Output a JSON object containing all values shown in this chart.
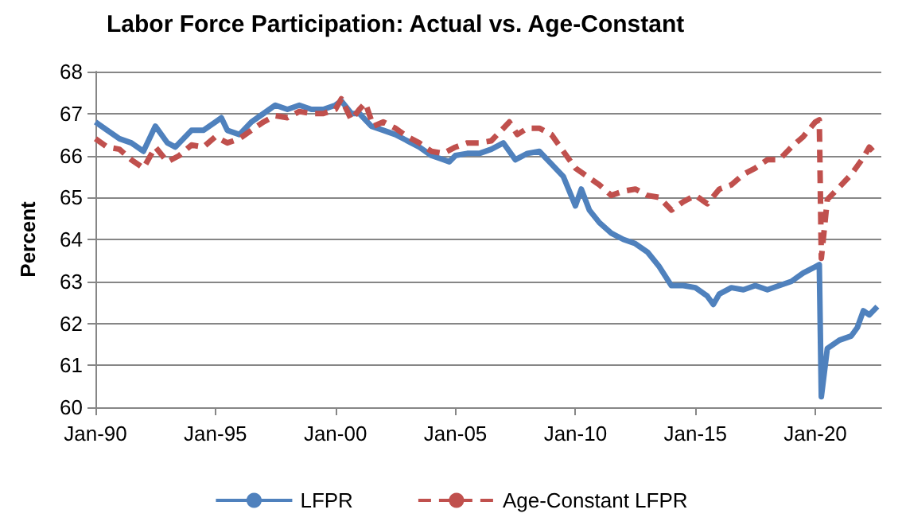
{
  "chart_data": {
    "type": "line",
    "title": "Labor Force Participation: Actual vs. Age-Constant",
    "ylabel": "Percent",
    "xlim": [
      "1990-01",
      "2022-10"
    ],
    "xticks": [
      {
        "value": "1990-01",
        "label": "Jan-90"
      },
      {
        "value": "1995-01",
        "label": "Jan-95"
      },
      {
        "value": "2000-01",
        "label": "Jan-00"
      },
      {
        "value": "2005-01",
        "label": "Jan-05"
      },
      {
        "value": "2010-01",
        "label": "Jan-10"
      },
      {
        "value": "2015-01",
        "label": "Jan-15"
      },
      {
        "value": "2020-01",
        "label": "Jan-20"
      }
    ],
    "ylim": [
      60,
      68
    ],
    "yticks": [
      60,
      61,
      62,
      63,
      64,
      65,
      66,
      67,
      68
    ],
    "grid": "y",
    "legend": "bottom",
    "marker": "none",
    "series": [
      {
        "name": "LFPR",
        "color": "#4f81bd",
        "line_style": "solid",
        "x": [
          "1990-01",
          "1990-07",
          "1991-01",
          "1991-07",
          "1992-01",
          "1992-07",
          "1993-01",
          "1993-05",
          "1994-01",
          "1994-07",
          "1995-01",
          "1995-04",
          "1995-07",
          "1996-01",
          "1996-07",
          "1997-01",
          "1997-07",
          "1998-01",
          "1998-07",
          "1999-01",
          "1999-07",
          "2000-01",
          "2000-04",
          "2000-09",
          "2001-01",
          "2001-07",
          "2002-01",
          "2002-07",
          "2003-01",
          "2003-07",
          "2004-01",
          "2004-07",
          "2004-10",
          "2005-01",
          "2005-07",
          "2006-01",
          "2006-07",
          "2007-01",
          "2007-07",
          "2008-01",
          "2008-07",
          "2009-01",
          "2009-07",
          "2010-01",
          "2010-04",
          "2010-08",
          "2011-01",
          "2011-07",
          "2012-01",
          "2012-07",
          "2013-01",
          "2013-07",
          "2014-01",
          "2014-07",
          "2015-01",
          "2015-07",
          "2015-10",
          "2016-01",
          "2016-07",
          "2017-01",
          "2017-07",
          "2018-01",
          "2018-07",
          "2019-01",
          "2019-07",
          "2020-01",
          "2020-03",
          "2020-04",
          "2020-07",
          "2021-01",
          "2021-07",
          "2021-10",
          "2022-01",
          "2022-04",
          "2022-08"
        ],
        "values": [
          66.8,
          66.6,
          66.4,
          66.3,
          66.1,
          66.7,
          66.3,
          66.2,
          66.6,
          66.6,
          66.8,
          66.9,
          66.6,
          66.5,
          66.8,
          67.0,
          67.2,
          67.1,
          67.2,
          67.1,
          67.1,
          67.2,
          67.3,
          67.0,
          67.0,
          66.7,
          66.6,
          66.5,
          66.35,
          66.2,
          66.0,
          65.9,
          65.85,
          66.0,
          66.05,
          66.05,
          66.15,
          66.3,
          65.9,
          66.05,
          66.1,
          65.8,
          65.5,
          64.8,
          65.2,
          64.7,
          64.4,
          64.15,
          64.0,
          63.9,
          63.7,
          63.35,
          62.9,
          62.9,
          62.85,
          62.65,
          62.45,
          62.7,
          62.85,
          62.8,
          62.9,
          62.8,
          62.9,
          63.0,
          63.2,
          63.35,
          63.4,
          60.25,
          61.4,
          61.6,
          61.7,
          61.9,
          62.3,
          62.2,
          62.4
        ]
      },
      {
        "name": "Age-Constant LFPR",
        "color": "#c0504d",
        "line_style": "dashed",
        "x": [
          "1990-01",
          "1990-07",
          "1991-01",
          "1991-07",
          "1992-01",
          "1992-07",
          "1993-01",
          "1993-07",
          "1994-01",
          "1994-07",
          "1995-01",
          "1995-07",
          "1996-01",
          "1996-07",
          "1997-01",
          "1997-07",
          "1998-01",
          "1998-07",
          "1999-01",
          "1999-07",
          "2000-01",
          "2000-04",
          "2000-09",
          "2001-01",
          "2001-04",
          "2001-08",
          "2002-01",
          "2002-07",
          "2003-01",
          "2003-07",
          "2004-01",
          "2004-07",
          "2005-01",
          "2005-07",
          "2006-01",
          "2006-07",
          "2007-01",
          "2007-04",
          "2007-08",
          "2008-01",
          "2008-07",
          "2009-01",
          "2009-07",
          "2010-01",
          "2010-07",
          "2011-01",
          "2011-07",
          "2012-01",
          "2012-07",
          "2013-01",
          "2013-07",
          "2014-01",
          "2014-07",
          "2015-01",
          "2015-07",
          "2016-01",
          "2016-07",
          "2017-01",
          "2017-07",
          "2018-01",
          "2018-07",
          "2019-01",
          "2019-07",
          "2020-01",
          "2020-03",
          "2020-04",
          "2020-07",
          "2021-01",
          "2021-07",
          "2022-01",
          "2022-04",
          "2022-08"
        ],
        "values": [
          66.4,
          66.2,
          66.15,
          65.9,
          65.7,
          66.2,
          65.85,
          66.0,
          66.25,
          66.2,
          66.45,
          66.3,
          66.4,
          66.6,
          66.8,
          66.95,
          66.9,
          67.05,
          67.0,
          67.0,
          67.1,
          67.35,
          66.85,
          67.1,
          67.25,
          66.7,
          66.8,
          66.65,
          66.45,
          66.3,
          66.1,
          66.05,
          66.2,
          66.3,
          66.3,
          66.35,
          66.65,
          66.8,
          66.5,
          66.65,
          66.65,
          66.5,
          66.1,
          65.7,
          65.5,
          65.3,
          65.05,
          65.15,
          65.2,
          65.05,
          65.0,
          64.7,
          64.9,
          65.05,
          64.85,
          65.2,
          65.3,
          65.55,
          65.7,
          65.9,
          65.9,
          66.2,
          66.45,
          66.8,
          66.85,
          63.55,
          64.95,
          65.25,
          65.55,
          65.95,
          66.2,
          66.0
        ]
      }
    ]
  }
}
